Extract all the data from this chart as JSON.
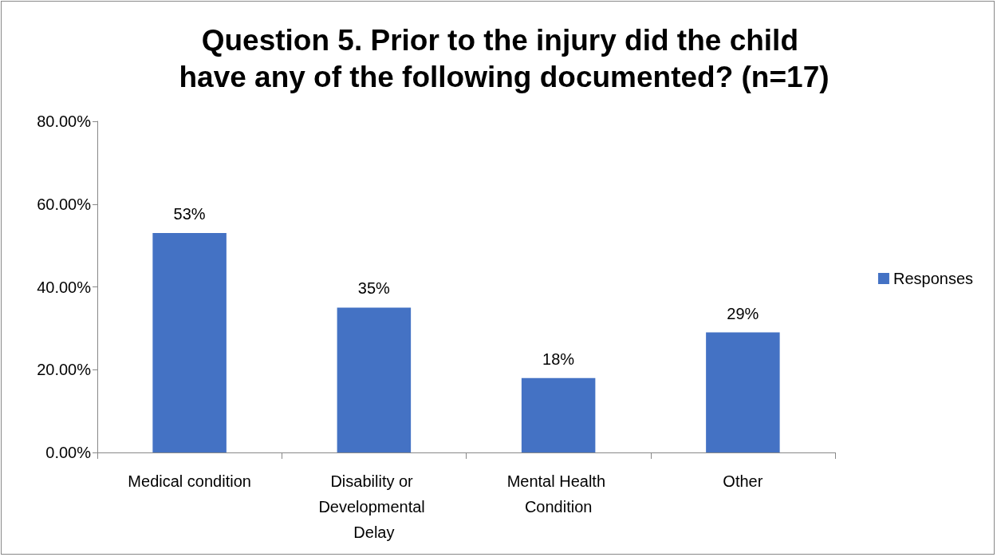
{
  "chart_data": {
    "type": "bar",
    "title": "Question 5. Prior to the injury did the child have any of the following documented? (n=17)",
    "categories": [
      "Medical condition",
      "Disability or Developmental Delay",
      "Mental Health Condition",
      "Other"
    ],
    "series": [
      {
        "name": "Responses",
        "color": "#4472c4",
        "values": [
          53,
          35,
          18,
          29
        ],
        "value_labels": [
          "53%",
          "35%",
          "18%",
          "29%"
        ]
      }
    ],
    "ylim": [
      0,
      80
    ],
    "yticks": [
      {
        "value": 0,
        "label": "0.00%"
      },
      {
        "value": 20,
        "label": "20.00%"
      },
      {
        "value": 40,
        "label": "40.00%"
      },
      {
        "value": 60,
        "label": "60.00%"
      },
      {
        "value": 80,
        "label": "80.00%"
      }
    ],
    "grid": false,
    "legend": "right"
  }
}
